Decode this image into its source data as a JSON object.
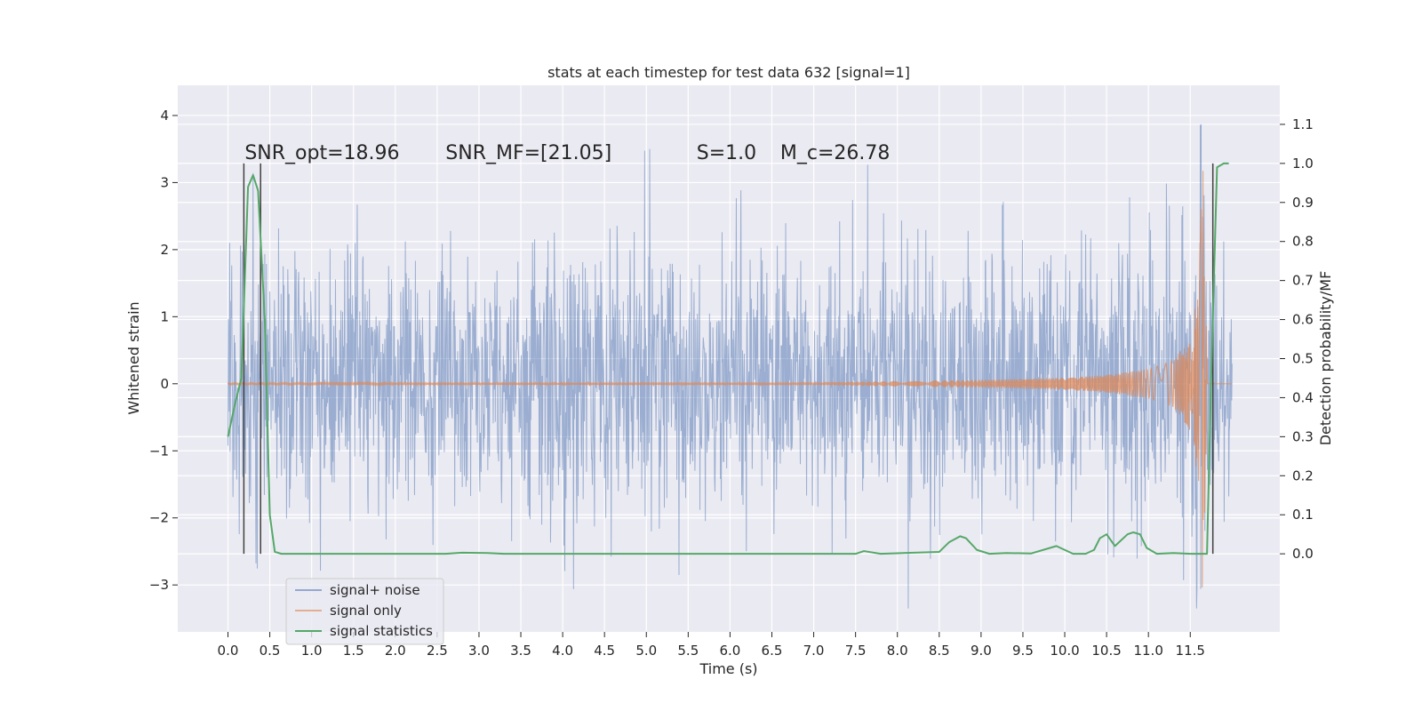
{
  "chart_data": {
    "type": "line",
    "title": "stats at each timestep for test data 632 [signal=1]",
    "xlabel": "Time (s)",
    "ylabel_left": "Whitened strain",
    "ylabel_right": "Detection probability/MF",
    "xlim": [
      -0.6,
      12.57
    ],
    "ylim_left": [
      -3.7,
      4.45
    ],
    "ylim_right": [
      -0.2,
      1.2
    ],
    "x_ticks": [
      "0.0",
      "0.5",
      "1.0",
      "1.5",
      "2.0",
      "2.5",
      "3.0",
      "3.5",
      "4.0",
      "4.5",
      "5.0",
      "5.5",
      "6.0",
      "6.5",
      "7.0",
      "7.5",
      "8.0",
      "8.5",
      "9.0",
      "9.5",
      "10.0",
      "10.5",
      "11.0",
      "11.5"
    ],
    "y_ticks_left": [
      "−3",
      "−2",
      "−1",
      "0",
      "1",
      "2",
      "3",
      "4"
    ],
    "y_ticks_right": [
      "0.0",
      "0.1",
      "0.2",
      "0.3",
      "0.4",
      "0.5",
      "0.6",
      "0.7",
      "0.8",
      "0.9",
      "1.0",
      "1.1"
    ],
    "grid": true,
    "background_color": "#eaeaf2",
    "legend_position": "lower-left",
    "annotations": [
      {
        "text": "SNR_opt=18.96",
        "x": 0.2,
        "y": 3.35
      },
      {
        "text": "SNR_MF=[21.05]",
        "x": 2.6,
        "y": 3.35
      },
      {
        "text": "S=1.0",
        "x": 5.6,
        "y": 3.35
      },
      {
        "text": "M_c=26.78",
        "x": 6.6,
        "y": 3.35
      }
    ],
    "vlines": [
      {
        "x": 0.19,
        "ymin": 0.0,
        "ymax": 1.0
      },
      {
        "x": 0.39,
        "ymin": 0.0,
        "ymax": 1.0
      },
      {
        "x": 11.77,
        "ymin": 0.0,
        "ymax": 1.0
      }
    ],
    "series": [
      {
        "name": "signal+ noise",
        "color": "#4c72b0",
        "axis": "left",
        "description": "noise-dominated whitened strain, approx. standard normal, spanning t=0 to 12",
        "t_range": [
          0,
          12
        ],
        "std": 0.95
      },
      {
        "name": "signal only",
        "color": "#dd8452",
        "axis": "left",
        "description": "chirp signal whose amplitude grows toward merger near t=11.65",
        "envelope": {
          "x": [
            0,
            7.0,
            8.0,
            9.0,
            10.0,
            10.5,
            11.0,
            11.3,
            11.5,
            11.6,
            11.65,
            11.7
          ],
          "amp": [
            0.01,
            0.02,
            0.04,
            0.06,
            0.09,
            0.13,
            0.22,
            0.35,
            0.7,
            1.5,
            3.3,
            0.4
          ]
        }
      },
      {
        "name": "signal statistics",
        "color": "#55a868",
        "axis": "right",
        "x": [
          0.0,
          0.08,
          0.16,
          0.24,
          0.3,
          0.36,
          0.44,
          0.5,
          0.56,
          0.64,
          0.8,
          2.6,
          2.8,
          3.1,
          3.3,
          7.5,
          7.6,
          7.8,
          8.5,
          8.62,
          8.75,
          8.82,
          8.95,
          9.1,
          9.3,
          9.6,
          9.9,
          10.0,
          10.1,
          10.25,
          10.35,
          10.42,
          10.5,
          10.6,
          10.75,
          10.82,
          10.9,
          10.98,
          11.1,
          11.3,
          11.5,
          11.6,
          11.7,
          11.75,
          11.82,
          11.9,
          11.96
        ],
        "values": [
          0.3,
          0.38,
          0.45,
          0.94,
          0.97,
          0.93,
          0.6,
          0.1,
          0.005,
          0.0,
          0.0,
          0.0,
          0.003,
          0.002,
          0.0,
          0.0,
          0.007,
          0.0,
          0.005,
          0.03,
          0.045,
          0.04,
          0.01,
          0.0,
          0.002,
          0.001,
          0.02,
          0.01,
          0.0,
          0.0,
          0.01,
          0.04,
          0.05,
          0.02,
          0.05,
          0.055,
          0.05,
          0.015,
          0.0,
          0.002,
          0.0,
          0.0,
          0.0,
          0.45,
          0.99,
          1.0,
          1.0
        ]
      }
    ]
  },
  "legend": {
    "items": [
      {
        "label": "signal+ noise",
        "color": "#4c72b0",
        "alpha": 0.55
      },
      {
        "label": "signal only",
        "color": "#dd8452",
        "alpha": 0.6
      },
      {
        "label": "signal statistics",
        "color": "#55a868",
        "alpha": 1.0
      }
    ]
  }
}
